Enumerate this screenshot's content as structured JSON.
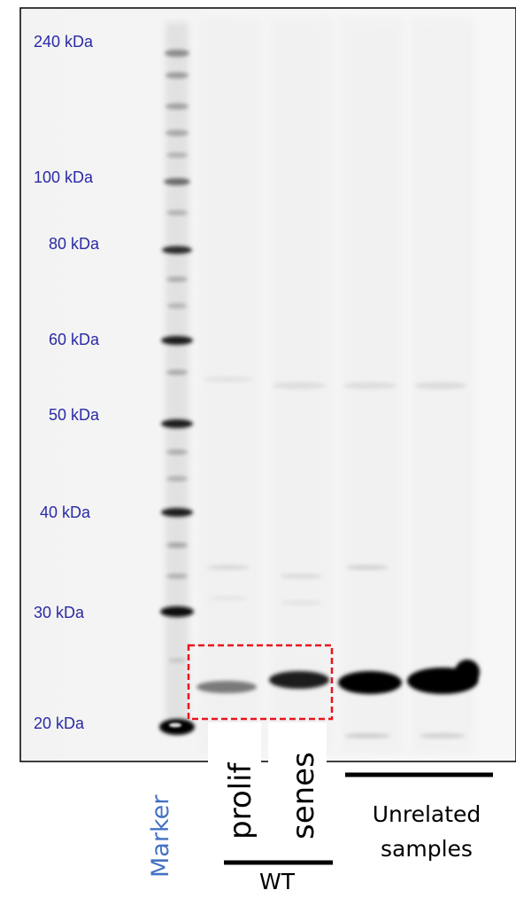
{
  "molecular_weight_labels": [
    {
      "text": "240 kDa"
    },
    {
      "text": "100 kDa"
    },
    {
      "text": "80 kDa"
    },
    {
      "text": "60 kDa"
    },
    {
      "text": "50 kDa"
    },
    {
      "text": "40 kDa"
    },
    {
      "text": "30 kDa"
    },
    {
      "text": "20 kDa"
    }
  ],
  "lane_labels": {
    "marker": "Marker",
    "prolif": "prolif",
    "senes": "senes",
    "unrelated_line1": "Unrelated",
    "unrelated_line2": "samples",
    "group_wt": "WT"
  },
  "colors": {
    "mw_label": "#2a2aa6",
    "marker_label": "#4472c4",
    "highlight_box": "#e8161c",
    "band": "#000000"
  }
}
